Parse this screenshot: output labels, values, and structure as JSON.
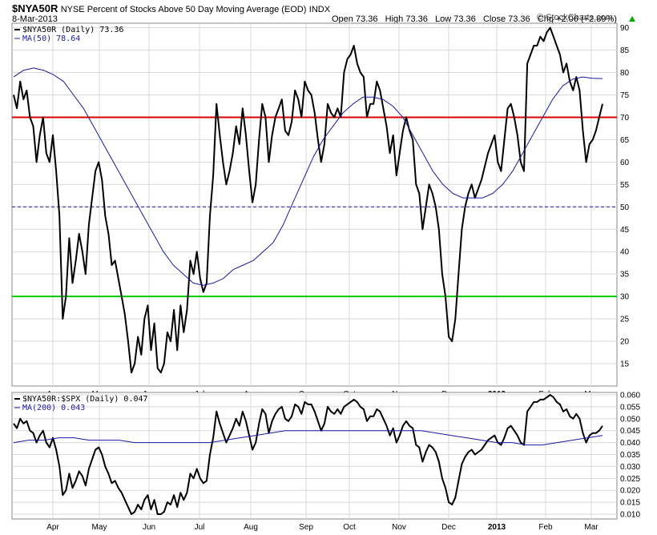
{
  "header": {
    "symbol": "$NYA50R",
    "description": "NYSE Percent of Stocks Above 50 Day Moving Average (EOD)",
    "exchange": "INDX",
    "date": "8-Mar-2013",
    "ohlc": "Open 73.36   High 73.36   Low 73.36   Close 73.36   Chg +2.06 (+2.89%)",
    "change_indicator_color": "#00aa00",
    "watermark": "© StockCharts.com",
    "watermark_icon": "copyright-icon"
  },
  "colors": {
    "price_line": "#000000",
    "ma_line": "#1a1aa0",
    "line_70": "#dd0000",
    "line_30": "#00cc00",
    "line_50": "#1a1aa0",
    "grid": "#d8d8d8"
  },
  "chart_data": [
    {
      "type": "line",
      "panel": "main",
      "legend": [
        "$NYA50R (Daily) 73.36",
        "MA(50) 78.64"
      ],
      "ylim": [
        10,
        91
      ],
      "y_ticks": [
        "15",
        "20",
        "25",
        "30",
        "35",
        "40",
        "45",
        "50",
        "55",
        "60",
        "65",
        "70",
        "75",
        "80",
        "85",
        "90"
      ],
      "x_labels": [
        "Apr",
        "May",
        "Jun",
        "Jul",
        "Aug",
        "Sep",
        "Oct",
        "Nov",
        "Dec",
        "2013",
        "Feb",
        "Mar"
      ],
      "reference_lines": [
        {
          "y": 70,
          "style": "solid",
          "color": "red"
        },
        {
          "y": 50,
          "style": "dashed",
          "color": "blue"
        },
        {
          "y": 30,
          "style": "solid",
          "color": "green"
        }
      ],
      "series": [
        {
          "name": "$NYA50R (Daily) 73.36",
          "values": [
            75,
            72,
            78,
            74,
            76,
            70,
            68,
            60,
            66,
            70,
            62,
            60,
            66,
            58,
            48,
            25,
            30,
            43,
            33,
            38,
            44,
            40,
            35,
            46,
            52,
            58,
            60,
            56,
            48,
            44,
            37,
            38,
            34,
            30,
            26,
            20,
            13,
            15,
            21,
            17,
            25,
            28,
            18,
            24,
            14,
            13,
            15,
            22,
            20,
            27,
            18,
            28,
            22,
            27,
            38,
            35,
            40,
            34,
            31,
            33,
            48,
            57,
            73,
            66,
            60,
            55,
            58,
            62,
            68,
            64,
            72,
            66,
            58,
            51,
            55,
            65,
            73,
            70,
            60,
            66,
            70,
            72,
            74,
            67,
            66,
            69,
            76,
            74,
            70,
            78,
            76,
            75,
            71,
            65,
            60,
            64,
            73,
            71,
            70,
            72,
            70,
            80,
            83,
            84,
            86,
            82,
            80,
            79,
            70,
            73,
            73,
            78,
            76,
            72,
            68,
            62,
            66,
            57,
            62,
            67,
            70,
            67,
            65,
            55,
            53,
            45,
            50,
            55,
            53,
            50,
            45,
            35,
            30,
            21,
            20,
            25,
            35,
            45,
            50,
            53,
            55,
            52,
            54,
            56,
            59,
            62,
            64,
            66,
            60,
            58,
            65,
            72,
            73,
            70,
            66,
            60,
            58,
            82,
            84,
            86,
            86,
            88,
            87,
            89,
            90,
            88,
            86,
            84,
            80,
            82,
            78,
            76,
            79,
            76,
            67,
            60,
            64,
            65,
            67,
            70,
            73
          ],
          "color": "#000000"
        },
        {
          "name": "MA(50) 78.64",
          "values": [
            79,
            80.5,
            81,
            80.5,
            79.5,
            78,
            75,
            72,
            68,
            64,
            60,
            56,
            52,
            48,
            44,
            40,
            37,
            35,
            33,
            32.5,
            33,
            34,
            36,
            37,
            38,
            40,
            42,
            46,
            51,
            56,
            61,
            65,
            68,
            71,
            73,
            74.5,
            74.5,
            74,
            72.5,
            70,
            66,
            62,
            58,
            55,
            53,
            52,
            52,
            52,
            53,
            55,
            58,
            62,
            66,
            70,
            74,
            77,
            78.5,
            79,
            78.7,
            78.64
          ],
          "color": "#1a1aa0"
        }
      ]
    },
    {
      "type": "line",
      "panel": "lower",
      "legend": [
        "$NYA50R:$SPX (Daily) 0.047",
        "MA(200) 0.043"
      ],
      "ylim": [
        0.008,
        0.061
      ],
      "y_ticks": [
        "0.010",
        "0.015",
        "0.020",
        "0.025",
        "0.030",
        "0.035",
        "0.040",
        "0.045",
        "0.050",
        "0.055",
        "0.060"
      ],
      "x_labels": [
        "Apr",
        "May",
        "Jun",
        "Jul",
        "Aug",
        "Sep",
        "Oct",
        "Nov",
        "Dec",
        "2013",
        "Feb",
        "Mar"
      ],
      "series": [
        {
          "name": "$NYA50R:$SPX (Daily) 0.047",
          "values": [
            0.048,
            0.046,
            0.05,
            0.048,
            0.049,
            0.045,
            0.044,
            0.04,
            0.043,
            0.045,
            0.04,
            0.038,
            0.042,
            0.037,
            0.03,
            0.018,
            0.02,
            0.027,
            0.021,
            0.024,
            0.028,
            0.026,
            0.022,
            0.029,
            0.033,
            0.037,
            0.038,
            0.035,
            0.03,
            0.027,
            0.023,
            0.024,
            0.021,
            0.019,
            0.016,
            0.013,
            0.01,
            0.011,
            0.014,
            0.012,
            0.016,
            0.018,
            0.012,
            0.016,
            0.01,
            0.01,
            0.011,
            0.015,
            0.014,
            0.018,
            0.013,
            0.019,
            0.016,
            0.019,
            0.027,
            0.025,
            0.029,
            0.025,
            0.023,
            0.024,
            0.035,
            0.042,
            0.053,
            0.048,
            0.044,
            0.04,
            0.043,
            0.046,
            0.05,
            0.047,
            0.053,
            0.049,
            0.043,
            0.037,
            0.04,
            0.048,
            0.054,
            0.052,
            0.044,
            0.049,
            0.052,
            0.054,
            0.055,
            0.05,
            0.049,
            0.051,
            0.056,
            0.055,
            0.052,
            0.057,
            0.056,
            0.056,
            0.053,
            0.049,
            0.045,
            0.048,
            0.055,
            0.053,
            0.052,
            0.054,
            0.052,
            0.055,
            0.056,
            0.057,
            0.058,
            0.057,
            0.055,
            0.054,
            0.049,
            0.051,
            0.051,
            0.054,
            0.053,
            0.05,
            0.047,
            0.043,
            0.046,
            0.04,
            0.043,
            0.047,
            0.049,
            0.047,
            0.046,
            0.039,
            0.038,
            0.032,
            0.036,
            0.039,
            0.038,
            0.036,
            0.032,
            0.025,
            0.021,
            0.015,
            0.014,
            0.017,
            0.024,
            0.031,
            0.034,
            0.036,
            0.037,
            0.035,
            0.036,
            0.037,
            0.039,
            0.041,
            0.042,
            0.043,
            0.04,
            0.039,
            0.042,
            0.046,
            0.047,
            0.045,
            0.043,
            0.04,
            0.039,
            0.053,
            0.055,
            0.057,
            0.057,
            0.058,
            0.058,
            0.059,
            0.06,
            0.059,
            0.057,
            0.056,
            0.053,
            0.054,
            0.051,
            0.05,
            0.052,
            0.05,
            0.044,
            0.04,
            0.043,
            0.044,
            0.044,
            0.045,
            0.047
          ],
          "color": "#000000"
        },
        {
          "name": "MA(200) 0.043",
          "values": [
            0.04,
            0.041,
            0.041,
            0.042,
            0.042,
            0.041,
            0.041,
            0.041,
            0.04,
            0.04,
            0.04,
            0.04,
            0.04,
            0.04,
            0.041,
            0.042,
            0.043,
            0.044,
            0.045,
            0.045,
            0.045,
            0.045,
            0.045,
            0.045,
            0.045,
            0.045,
            0.045,
            0.045,
            0.044,
            0.043,
            0.042,
            0.041,
            0.04,
            0.04,
            0.039,
            0.039,
            0.04,
            0.041,
            0.042,
            0.043
          ],
          "color": "#1a1aa0"
        }
      ]
    }
  ]
}
